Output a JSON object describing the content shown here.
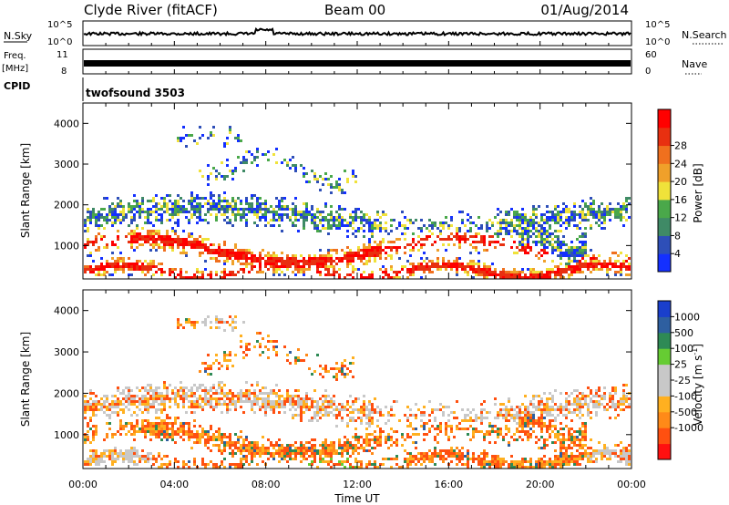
{
  "header": {
    "title": "Clyde River (fitACF)",
    "beam": "Beam 00",
    "date": "01/Aug/2014"
  },
  "nsky_panel": {
    "left_label": "N.Sky",
    "left_ticks": [
      "10^5",
      "10^0"
    ],
    "right_ticks": [
      "10^5",
      "10^0"
    ],
    "right_label": "N.Search"
  },
  "freq_panel": {
    "left_label_top": "Freq.",
    "left_label_bottom": "[MHz]",
    "left_ticks": [
      "11",
      "8"
    ],
    "right_ticks": [
      "60",
      "0"
    ],
    "right_label": "Nave"
  },
  "cpid_panel": {
    "label": "CPID",
    "value": "twofsound 3503"
  },
  "colors": {
    "power_scale": [
      "#1430ff",
      "#2e4fb8",
      "#3f8a66",
      "#4aa84a",
      "#f0e23a",
      "#f0a02a",
      "#f0701e",
      "#e83010",
      "#ff0000"
    ],
    "velocity_scale": [
      "#ff1010",
      "#ff5010",
      "#ff8a18",
      "#ffb020",
      "#c8c8c8",
      "#c8c8c8",
      "#66cc33",
      "#2e8a55",
      "#2e5fa0",
      "#1a3fcc"
    ]
  },
  "chart_data": [
    {
      "type": "heatmap",
      "title": "",
      "xlabel": "",
      "ylabel": "Slant Range [km]",
      "xlim": [
        0,
        24
      ],
      "ylim": [
        180,
        4500
      ],
      "x_tick_labels": [
        "00:00",
        "04:00",
        "08:00",
        "12:00",
        "16:00",
        "20:00",
        "00:00"
      ],
      "y_tick_values": [
        1000,
        2000,
        3000,
        4000
      ],
      "y_tick_labels": [
        "1000",
        "2000",
        "3000",
        "4000"
      ],
      "colorbar": {
        "label": "Power [dB]",
        "range": [
          0,
          32
        ],
        "tick_labels": [
          "4",
          "8",
          "12",
          "16",
          "20",
          "24",
          "28"
        ]
      }
    },
    {
      "type": "heatmap",
      "title": "",
      "xlabel": "Time UT",
      "ylabel": "Slant Range [km]",
      "xlim": [
        0,
        24
      ],
      "ylim": [
        180,
        4500
      ],
      "x_tick_labels": [
        "00:00",
        "04:00",
        "08:00",
        "12:00",
        "16:00",
        "20:00",
        "00:00"
      ],
      "y_tick_values": [
        1000,
        2000,
        3000,
        4000
      ],
      "y_tick_labels": [
        "1000",
        "2000",
        "3000",
        "4000"
      ],
      "colorbar": {
        "label_main": "Velocity [m s",
        "label_exp": "-1",
        "label_close": "]",
        "tick_labels": [
          "1000",
          "500",
          "100",
          "25",
          "-25",
          "-100",
          "-500",
          "-1000"
        ]
      }
    }
  ]
}
